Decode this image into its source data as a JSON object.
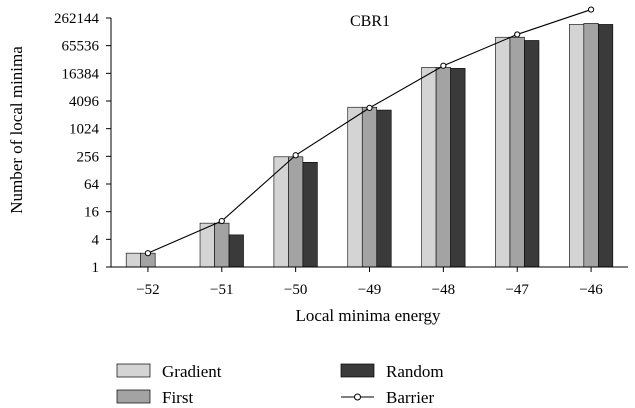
{
  "chart_data": {
    "type": "bar",
    "title": "CBR1",
    "xlabel": "Local minima energy",
    "ylabel": "Number of local minima",
    "y_scale": "log2",
    "ylim": [
      1,
      262144
    ],
    "y_ticks": [
      "1",
      "4",
      "16",
      "64",
      "256",
      "1024",
      "4096",
      "16384",
      "65536",
      "262144"
    ],
    "categories": [
      "−52",
      "−51",
      "−50",
      "−49",
      "−48",
      "−47",
      "−46"
    ],
    "grid": false,
    "legend_position": "bottom",
    "series": [
      {
        "name": "Gradient",
        "type": "bar",
        "color": "#d4d4d4",
        "values": [
          2,
          9,
          250,
          3000,
          22000,
          100000,
          190000
        ]
      },
      {
        "name": "First",
        "type": "bar",
        "color": "#a3a3a3",
        "values": [
          2,
          9,
          250,
          3000,
          22000,
          100000,
          200000
        ]
      },
      {
        "name": "Random",
        "type": "bar",
        "color": "#3a3a3a",
        "values": [
          null,
          5,
          190,
          2600,
          21000,
          85000,
          190000
        ]
      },
      {
        "name": "Barrier",
        "type": "line",
        "color": "#000000",
        "marker": "open-circle",
        "values": [
          2,
          10,
          270,
          2900,
          24000,
          115000,
          400000
        ]
      }
    ]
  }
}
